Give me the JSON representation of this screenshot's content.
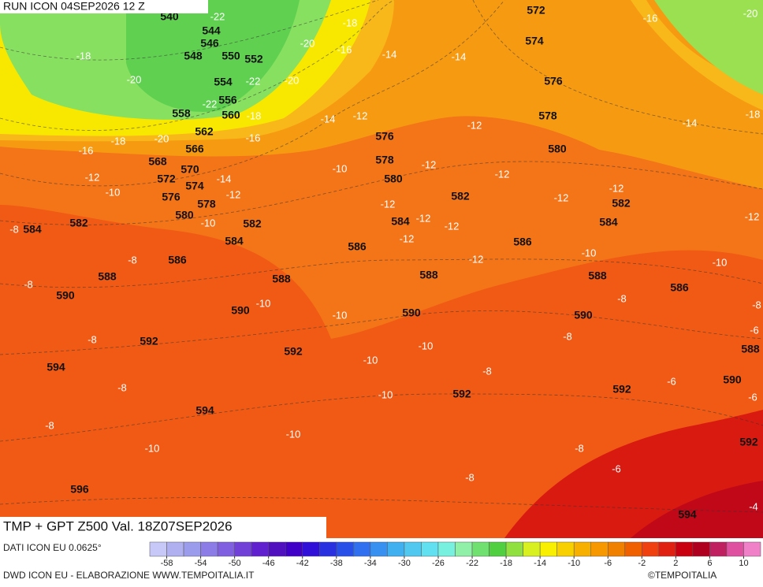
{
  "header": "RUN ICON 04SEP2026 12 Z",
  "title": "TMP + GPT Z500 Val. 18Z07SEP2026",
  "resolution": "DATI ICON EU 0.0625°",
  "credit": "DWD ICON EU - ELABORAZIONE WWW.TEMPOITALIA.IT",
  "copyright": "©TEMPOITALIA",
  "colorbar": {
    "range": [
      -60,
      12
    ],
    "ticks": [
      -58,
      -54,
      -50,
      -46,
      -42,
      -38,
      -34,
      -30,
      -26,
      -22,
      -18,
      -14,
      -10,
      -6,
      -2,
      2,
      6,
      10
    ],
    "colors": [
      "#c8c8f8",
      "#b0b0f0",
      "#9c9cec",
      "#8c7ce8",
      "#8060e0",
      "#7040d8",
      "#6020d0",
      "#5010c0",
      "#4000c8",
      "#3010d8",
      "#2830e0",
      "#2850e8",
      "#3070f0",
      "#3890f0",
      "#40b0f0",
      "#50c8f0",
      "#60e0f0",
      "#78f0e0",
      "#90f0a8",
      "#70e070",
      "#50d040",
      "#90e040",
      "#d8f020",
      "#f8f000",
      "#f8d000",
      "#f8b000",
      "#f89800",
      "#f08000",
      "#f06000",
      "#f04010",
      "#e02010",
      "#c80010",
      "#b00020",
      "#c02060",
      "#e050a0",
      "#f080c8"
    ]
  },
  "height_labels": [
    540,
    544,
    546,
    548,
    550,
    552,
    554,
    556,
    558,
    560,
    562,
    566,
    568,
    570,
    572,
    574,
    576,
    578,
    580,
    582,
    584,
    586,
    588,
    590,
    592,
    594,
    594,
    596,
    584,
    582,
    588,
    590,
    592,
    590,
    588,
    586,
    584,
    580,
    578,
    576,
    582,
    586,
    592,
    572,
    574,
    576,
    578,
    580,
    582,
    584,
    588,
    590,
    586,
    588,
    590,
    592,
    592,
    594
  ],
  "temp_labels": [
    -18,
    -20,
    -22,
    -22,
    -22,
    -20,
    -20,
    -18,
    -16,
    -14,
    -14,
    -16,
    -20,
    -18,
    -16,
    -18,
    -20,
    -16,
    -14,
    -12,
    -12,
    -14,
    -18,
    -12,
    -10,
    -14,
    -12,
    -10,
    -10,
    -12,
    -12,
    -12,
    -12,
    -12,
    -12,
    -12,
    -12,
    -12,
    -12,
    -8,
    -8,
    -8,
    -10,
    -10,
    -10,
    -10,
    -8,
    -8,
    -8,
    -8,
    -10,
    -10,
    -6,
    -8,
    -6,
    -8,
    -10,
    -6,
    -8,
    -10,
    -10,
    -8,
    -6,
    -8,
    -4
  ]
}
